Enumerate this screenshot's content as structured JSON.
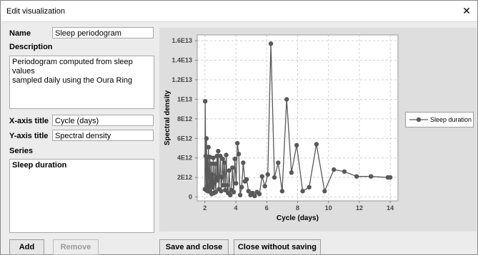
{
  "window": {
    "title": "Edit visualization"
  },
  "form": {
    "name_label": "Name",
    "name_value": "Sleep periodogram",
    "description_label": "Description",
    "description_line1": "Periodogram computed from sleep values",
    "description_line2": "sampled daily using the Oura Ring",
    "xaxis_label": "X-axis title",
    "xaxis_value": "Cycle (days)",
    "yaxis_label": "Y-axis title",
    "yaxis_value": "Spectral density",
    "series_label": "Series",
    "series": [
      "Sleep duration"
    ]
  },
  "buttons": {
    "add": "Add",
    "remove": "Remove",
    "save_close": "Save and close",
    "close_without_saving": "Close without saving"
  },
  "colors": {
    "series": "#595959",
    "plot_bg": "#ffffff",
    "panel_bg": "#dedede",
    "grid": "#d0d0d0"
  },
  "chart_data": {
    "type": "line",
    "xlabel": "Cycle (days)",
    "ylabel": "Spectral density",
    "xlim": [
      1.5,
      14.5
    ],
    "ylim": [
      -400000000000.0,
      16600000000000.0
    ],
    "xticks": [
      2,
      4,
      6,
      8,
      10,
      12,
      14
    ],
    "yticks": [
      {
        "v": 0,
        "label": "0"
      },
      {
        "v": 2000000000000.0,
        "label": "2E12"
      },
      {
        "v": 4000000000000.0,
        "label": "4E12"
      },
      {
        "v": 6000000000000.0,
        "label": "6E12"
      },
      {
        "v": 8000000000000.0,
        "label": "8E12"
      },
      {
        "v": 10000000000000.0,
        "label": "1E13"
      },
      {
        "v": 12000000000000.0,
        "label": "1.2E13"
      },
      {
        "v": 14000000000000.0,
        "label": "1.4E13"
      },
      {
        "v": 16000000000000.0,
        "label": "1.6E13"
      }
    ],
    "grid": true,
    "legend": "right",
    "series": [
      {
        "name": "Sleep duration",
        "x": [
          2.0,
          2.02,
          2.05,
          2.08,
          2.1,
          2.13,
          2.15,
          2.18,
          2.2,
          2.23,
          2.26,
          2.29,
          2.32,
          2.35,
          2.38,
          2.41,
          2.44,
          2.47,
          2.5,
          2.54,
          2.58,
          2.62,
          2.66,
          2.7,
          2.74,
          2.78,
          2.82,
          2.86,
          2.9,
          2.95,
          3.0,
          3.05,
          3.1,
          3.15,
          3.2,
          3.26,
          3.32,
          3.38,
          3.44,
          3.5,
          3.57,
          3.64,
          3.71,
          3.78,
          3.86,
          3.94,
          4.02,
          4.1,
          4.19,
          4.28,
          4.38,
          4.48,
          4.59,
          4.7,
          4.82,
          4.95,
          5.08,
          5.22,
          5.37,
          5.53,
          5.7,
          5.88,
          6.07,
          6.27,
          6.5,
          6.74,
          7.0,
          7.29,
          7.6,
          7.94,
          8.33,
          8.75,
          9.22,
          9.75,
          10.35,
          11.03,
          11.82,
          12.75,
          13.85,
          14.0
        ],
        "y": [
          800000000000.0,
          9800000000000.0,
          4200000000000.0,
          700000000000.0,
          6000000000000.0,
          1000000000000.0,
          4100000000000.0,
          600000000000.0,
          2800000000000.0,
          5100000000000.0,
          900000000000.0,
          1200000000000.0,
          4100000000000.0,
          500000000000.0,
          1400000000000.0,
          3400000000000.0,
          300000000000.0,
          2300000000000.0,
          1000000000000.0,
          4000000000000.0,
          400000000000.0,
          1400000000000.0,
          3400000000000.0,
          500000000000.0,
          2000000000000.0,
          4200000000000.0,
          1700000000000.0,
          4700000000000.0,
          800000000000.0,
          2100000000000.0,
          4200000000000.0,
          600000000000.0,
          2000000000000.0,
          3900000000000.0,
          1200000000000.0,
          3500000000000.0,
          700000000000.0,
          4300000000000.0,
          1200000000000.0,
          400000000000.0,
          2700000000000.0,
          200000000000.0,
          700000000000.0,
          3000000000000.0,
          500000000000.0,
          3900000000000.0,
          1400000000000.0,
          5500000000000.0,
          4400000000000.0,
          200000000000.0,
          1000000000000.0,
          3500000000000.0,
          1600000000000.0,
          1800000000000.0,
          600000000000.0,
          200000000000.0,
          400000000000.0,
          100000000000.0,
          500000000000.0,
          300000000000.0,
          2100000000000.0,
          1100000000000.0,
          2300000000000.0,
          15700000000000.0,
          2000000000000.0,
          3500000000000.0,
          600000000000.0,
          10000000000000.0,
          2500000000000.0,
          5300000000000.0,
          600000000000.0,
          1000000000000.0,
          5400000000000.0,
          600000000000.0,
          2800000000000.0,
          2600000000000.0,
          2100000000000.0,
          2100000000000.0,
          2000000000000.0,
          2000000000000.0
        ]
      }
    ]
  }
}
